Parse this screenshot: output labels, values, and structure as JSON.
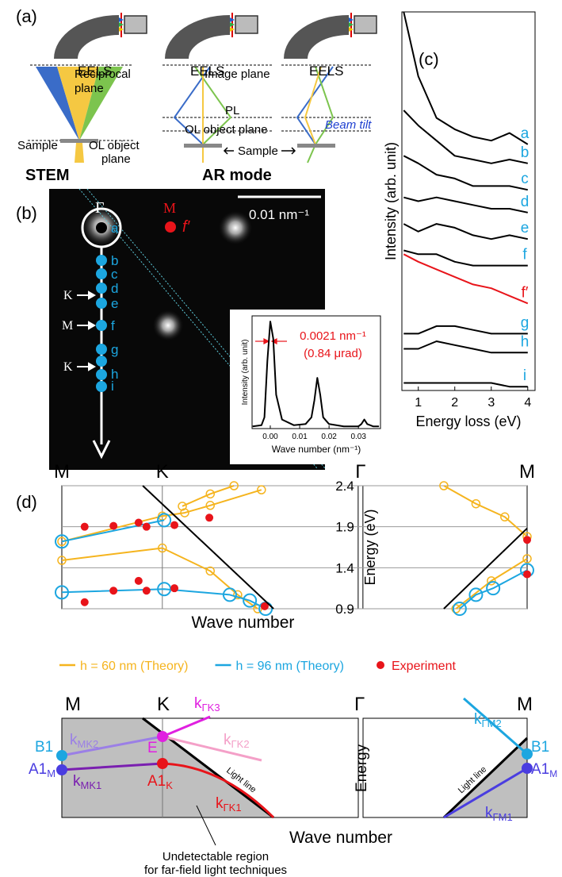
{
  "panel_labels": [
    "(a)",
    "(b)",
    "(c)",
    "(d)"
  ],
  "a": {
    "eels": [
      "EELS",
      "EELS",
      "EELS"
    ],
    "reciprocal_plane": [
      "Reciprocal",
      "plane"
    ],
    "image_plane": "Image plane",
    "pl": "PL",
    "ol_object_plane": "OL object plane",
    "beam_tilt": "Beam tilt",
    "sample_left": "Sample",
    "ol_object_left": [
      "OL object",
      "plane"
    ],
    "sample_middle": "Sample",
    "stem": "STEM",
    "ar_mode": "AR mode"
  },
  "b": {
    "scale_bar": "0.01 nm⁻¹",
    "gamma": "Γ",
    "m_label": "M",
    "f_prime": "f′",
    "spots": [
      "a",
      "b",
      "c",
      "d",
      "e",
      "f",
      "g",
      "h",
      "i"
    ],
    "arrows": [
      "K",
      "M",
      "K"
    ]
  },
  "schematic": {
    "top_labels": [
      "M",
      "K",
      "Γ",
      "M"
    ],
    "b1_left": "B1",
    "a1m_left": {
      "main": "A1",
      "sub": "M"
    },
    "k_mk2": {
      "main": "k",
      "sub": "MK2"
    },
    "k_mk1": {
      "main": "k",
      "sub": "MK1"
    },
    "e": "E",
    "a1k": {
      "main": "A1",
      "sub": "K"
    },
    "k_gk3": {
      "main": "k",
      "sub": "ΓK3"
    },
    "k_gk2": {
      "main": "k",
      "sub": "ΓK2"
    },
    "light_line_left": "Light line",
    "k_gk1": {
      "main": "k",
      "sub": "ΓK1"
    },
    "energy": "Energy",
    "k_gm2": {
      "main": "k",
      "sub": "ΓM2"
    },
    "b1_right": "B1",
    "a1m_right": {
      "main": "A1",
      "sub": "M"
    },
    "light_line_right": "Light line",
    "k_gm1": {
      "main": "k",
      "sub": "ΓM1"
    },
    "wave_number": "Wave number",
    "note": [
      "Undetectable region",
      "for far-field light techniques"
    ]
  },
  "chart_data": [
    {
      "type": "line",
      "xlabel": "Energy loss (eV)",
      "ylabel": "Intensity (arb. unit)",
      "xlim": [
        0.55,
        4.2
      ],
      "xticks": [
        1,
        2,
        3,
        4
      ],
      "ylim": [
        0,
        100
      ],
      "x": [
        0.6,
        1,
        1.5,
        2,
        2.5,
        3,
        3.5,
        4
      ],
      "series": [
        {
          "name": "a",
          "color": "#000000",
          "label_color": "#1ca6e0",
          "values": [
            100,
            83,
            72,
            69,
            67,
            66,
            68,
            65
          ]
        },
        {
          "name": "b",
          "color": "#000000",
          "label_color": "#1ca6e0",
          "values": [
            74,
            70,
            66,
            62,
            61,
            60,
            61,
            60
          ]
        },
        {
          "name": "c",
          "color": "#000000",
          "label_color": "#1ca6e0",
          "values": [
            62,
            60,
            57,
            56,
            54,
            54,
            54,
            53
          ]
        },
        {
          "name": "d",
          "color": "#000000",
          "label_color": "#1ca6e0",
          "values": [
            51,
            50,
            51,
            50,
            49,
            48,
            48,
            47
          ]
        },
        {
          "name": "e",
          "color": "#000000",
          "label_color": "#1ca6e0",
          "values": [
            44,
            42,
            44,
            43,
            41,
            40,
            41,
            40
          ]
        },
        {
          "name": "f",
          "color": "#000000",
          "label_color": "#1ca6e0",
          "values": [
            37,
            36,
            36,
            34,
            33,
            33,
            33,
            33
          ]
        },
        {
          "name": "f′",
          "color": "#e8141a",
          "label_color": "#e8141a",
          "values": [
            36,
            34,
            32,
            30,
            28,
            27,
            25,
            23
          ]
        },
        {
          "name": "g",
          "color": "#000000",
          "label_color": "#1ca6e0",
          "values": [
            15,
            15,
            17,
            17,
            16,
            15,
            15,
            15
          ]
        },
        {
          "name": "h",
          "color": "#000000",
          "label_color": "#1ca6e0",
          "values": [
            11,
            11,
            13,
            12,
            11,
            10,
            10,
            10
          ]
        },
        {
          "name": "i",
          "color": "#000000",
          "label_color": "#1ca6e0",
          "values": [
            2,
            2,
            2,
            2,
            2,
            2,
            1,
            1
          ]
        }
      ]
    },
    {
      "type": "line",
      "xlabel": "Wave number (nm⁻¹)",
      "ylabel": "Intensity (arb. unit)",
      "xlim": [
        -0.0062,
        0.0375
      ],
      "xticks": [
        {
          "value": 0,
          "label": "0.00"
        },
        0.01,
        0.02,
        0.03
      ],
      "ylim": [
        0,
        100
      ],
      "annotations": [
        "0.0021 nm⁻¹",
        "(0.84 μrad)"
      ],
      "annotation_color": "#e8141a",
      "color": "#000000",
      "x": [
        -0.006,
        -0.003,
        -0.002,
        -0.001,
        0,
        0.001,
        0.002,
        0.004,
        0.008,
        0.012,
        0.014,
        0.015,
        0.016,
        0.017,
        0.018,
        0.02,
        0.025,
        0.03,
        0.031,
        0.032,
        0.033,
        0.035,
        0.037
      ],
      "values": [
        2,
        3,
        10,
        60,
        95,
        80,
        30,
        8,
        3,
        4,
        10,
        25,
        45,
        30,
        10,
        4,
        2,
        2,
        4,
        8,
        4,
        2,
        2
      ]
    },
    {
      "type": "line",
      "xlabel": "Wave number",
      "ylabel": "Energy (eV)",
      "xlim": [
        0,
        100
      ],
      "xticks": [
        {
          "value": 0,
          "label": "M"
        },
        {
          "value": 21.6,
          "label": "K"
        },
        {
          "value": 64.2,
          "label": "Γ"
        },
        {
          "value": 100,
          "label": "M"
        }
      ],
      "ylim": [
        0.9,
        2.4
      ],
      "yticks": [
        0.9,
        1.4,
        1.9,
        2.4
      ],
      "grid": true,
      "series": [
        {
          "name": "h = 60 nm (Theory)",
          "color": "#f5b41e",
          "marker": "small-ring",
          "x": [
            0,
            21.6,
            31.9,
            37.8,
            42.1,
            null,
            0,
            21.6,
            26.4,
            31.9,
            42.9,
            null,
            25.9,
            31.9,
            37.0,
            null,
            82.1,
            89.0,
            95.2,
            100,
            null,
            84.7,
            92.3,
            100
          ],
          "values": [
            1.49,
            1.64,
            1.36,
            1.07,
            0.9,
            null,
            1.72,
            2.03,
            2.07,
            2.16,
            2.35,
            null,
            2.15,
            2.3,
            2.4,
            null,
            2.4,
            2.18,
            2.02,
            1.78,
            null,
            0.9,
            1.24,
            1.51
          ]
        },
        {
          "name": "h = 96 nm (Theory)",
          "color": "#1ca6e0",
          "marker": "ring",
          "x": [
            0,
            22,
            null,
            0,
            22,
            36.1,
            40.4,
            43.8,
            null,
            85.5,
            89,
            92.7,
            100
          ],
          "values": [
            1.72,
            1.98,
            null,
            1.1,
            1.14,
            1.07,
            1.0,
            0.9,
            null,
            0.9,
            1.07,
            1.15,
            1.37
          ]
        },
        {
          "name": "Experiment",
          "color": "#e8141a",
          "marker": "dot",
          "line": false,
          "x": [
            4.9,
            11.1,
            16.5,
            18.2,
            24.2,
            31.7,
            4.9,
            11.1,
            16.5,
            18.2,
            24.2,
            43.6,
            100,
            100
          ],
          "values": [
            1.9,
            1.91,
            1.95,
            1.9,
            1.92,
            2.01,
            0.98,
            1.12,
            1.24,
            1.12,
            1.15,
            0.93,
            1.74,
            1.32
          ]
        },
        {
          "color": "#000000",
          "x": [
            17.4,
            45.5,
            null,
            82.1,
            100
          ],
          "values": [
            2.4,
            0.9,
            null,
            0.9,
            1.88
          ]
        }
      ]
    }
  ]
}
